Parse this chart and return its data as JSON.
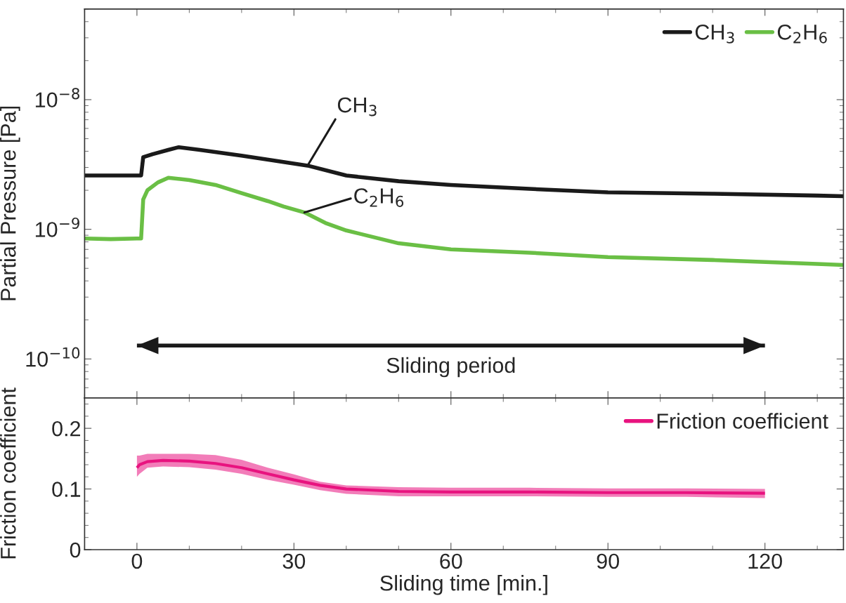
{
  "chart_data": [
    {
      "type": "line",
      "ylabel": "Partial Pressure [Pa]",
      "log": "y",
      "xlim": [
        -10,
        135
      ],
      "ylim": [
        5e-11,
        5e-08
      ],
      "xticks": [
        0,
        30,
        60,
        90,
        120
      ],
      "yticks": [
        {
          "value": 1e-10,
          "label": "10$^{−10}$"
        },
        {
          "value": 1e-09,
          "label": "10$^{−9}$"
        },
        {
          "value": 1e-08,
          "label": "10$^{−8}$"
        }
      ],
      "tick_labels": "y",
      "legend": "top right",
      "grid": false,
      "line_style": "solid",
      "marker": "none",
      "series": [
        {
          "name": "CH$_{3}$",
          "color": "#1a1a1a",
          "x": [
            -10,
            -5,
            0,
            0.8,
            1.2,
            3,
            6,
            8,
            12,
            20,
            26,
            32.6,
            40,
            50,
            60,
            75,
            90,
            110,
            130,
            135
          ],
          "values": [
            2.6e-09,
            2.6e-09,
            2.6e-09,
            2.6e-09,
            3.6e-09,
            3.8e-09,
            4.1e-09,
            4.3e-09,
            4.1e-09,
            3.7e-09,
            3.4e-09,
            3.1e-09,
            2.6e-09,
            2.35e-09,
            2.2e-09,
            2.05e-09,
            1.93e-09,
            1.88e-09,
            1.82e-09,
            1.8e-09
          ]
        },
        {
          "name": "C$_{2}$H$_{6}$",
          "color": "#6abf45",
          "x": [
            -10,
            -5,
            0,
            0.8,
            1.2,
            2,
            4,
            6,
            10,
            15,
            20,
            25,
            28,
            32,
            36,
            40,
            50,
            60,
            75,
            90,
            110,
            130,
            135
          ],
          "values": [
            8.5e-10,
            8.4e-10,
            8.5e-10,
            8.5e-10,
            1.7e-09,
            2e-09,
            2.3e-09,
            2.5e-09,
            2.4e-09,
            2.2e-09,
            1.9e-09,
            1.65e-09,
            1.5e-09,
            1.35e-09,
            1.12e-09,
            9.8e-10,
            7.8e-10,
            7e-10,
            6.6e-10,
            6.1e-10,
            5.8e-10,
            5.4e-10,
            5.3e-10
          ]
        },
        {
          "color": "#1a1a1a",
          "x": [
            0,
            120
          ],
          "values": [
            1.27e-10,
            1.27e-10
          ]
        }
      ],
      "annotations": [
        {
          "text": "CH$_{3}$",
          "x": 32.6,
          "y": 3.1e-09
        },
        {
          "text": "C$_{2}$H$_{6}$",
          "x": 32,
          "y": 1.35e-09
        },
        {
          "text": "Sliding period",
          "x": 60,
          "y": 1.27e-10
        }
      ]
    },
    {
      "type": "line",
      "xlabel": "Sliding time [min.]",
      "ylabel": "Friction coefficient",
      "xlim": [
        -10,
        135
      ],
      "ylim": [
        0,
        0.25
      ],
      "xticks": [
        0,
        30,
        60,
        90,
        120
      ],
      "yticks": [
        0,
        0.1,
        0.2
      ],
      "legend": "top right",
      "grid": false,
      "line_style": "solid",
      "marker": "none",
      "series": [
        {
          "name": "Friction coefficient",
          "color": "#e8137f",
          "x": [
            0,
            0.5,
            2,
            5,
            10,
            15,
            20,
            25,
            30,
            35,
            40,
            50,
            60,
            75,
            90,
            105,
            120
          ],
          "values": [
            0.135,
            0.14,
            0.145,
            0.147,
            0.146,
            0.142,
            0.135,
            0.125,
            0.115,
            0.106,
            0.1,
            0.096,
            0.095,
            0.095,
            0.094,
            0.094,
            0.093
          ],
          "lower": [
            0.12,
            0.125,
            0.135,
            0.137,
            0.136,
            0.132,
            0.125,
            0.115,
            0.107,
            0.098,
            0.092,
            0.088,
            0.088,
            0.088,
            0.087,
            0.087,
            0.085
          ],
          "upper": [
            0.155,
            0.155,
            0.158,
            0.158,
            0.158,
            0.156,
            0.148,
            0.135,
            0.124,
            0.112,
            0.106,
            0.103,
            0.102,
            0.102,
            0.101,
            0.101,
            0.1
          ]
        }
      ]
    }
  ]
}
